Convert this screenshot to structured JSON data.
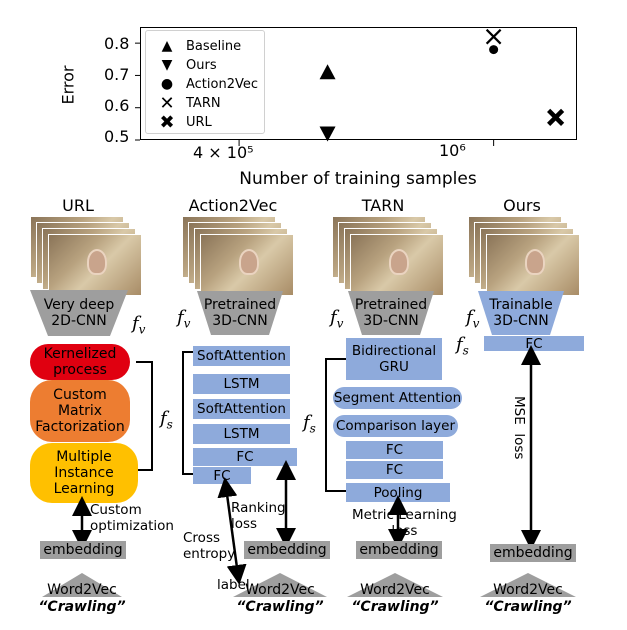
{
  "chart_data": {
    "type": "scatter",
    "xlabel": "Number of training samples",
    "ylabel": "Error",
    "xscale": "log",
    "xlim": [
      280000,
      1350000
    ],
    "ylim": [
      0.5,
      0.85
    ],
    "yticks": [
      "0.5",
      "0.6",
      "0.7",
      "0.8"
    ],
    "xticks": [
      {
        "value": 400000,
        "label": "4 × 10⁵"
      },
      {
        "value": 1000000,
        "label": "10⁶"
      }
    ],
    "legend": "upper-left",
    "series": [
      {
        "name": "Baseline",
        "marker": "triangle-up",
        "points": [
          {
            "x": 550000,
            "y": 0.71
          }
        ]
      },
      {
        "name": "Ours",
        "marker": "triangle-down",
        "points": [
          {
            "x": 550000,
            "y": 0.52
          }
        ]
      },
      {
        "name": "Action2Vec",
        "marker": "dot",
        "points": [
          {
            "x": 1000000,
            "y": 0.78
          }
        ]
      },
      {
        "name": "TARN",
        "marker": "x",
        "points": [
          {
            "x": 1000000,
            "y": 0.82
          }
        ]
      },
      {
        "name": "URL",
        "marker": "bold-x",
        "points": [
          {
            "x": 1250000,
            "y": 0.57
          }
        ]
      }
    ]
  },
  "diagram": {
    "columns": {
      "url": {
        "title": "URL",
        "encoder": "Very deep\n2D-CNN",
        "blocks": [
          "Kernelized\nprocess",
          "Custom\nMatrix\nFactorization",
          "Multiple\nInstance\nLearning"
        ],
        "arrow_note": "Custom\noptimization"
      },
      "action2vec": {
        "title": "Action2Vec",
        "encoder": "Pretrained\n3D-CNN",
        "blocks": [
          "SoftAttention",
          "LSTM",
          "SoftAttention",
          "LSTM",
          "FC",
          "FC"
        ],
        "note_cross": "Cross\nentropy",
        "note_label": "label",
        "note_ranking": "Ranking\nloss"
      },
      "tarn": {
        "title": "TARN",
        "encoder": "Pretrained\n3D-CNN",
        "blocks": [
          "Bidirectional\nGRU",
          "Segment Attention",
          "Comparison layer",
          "FC",
          "FC",
          "Pooling"
        ],
        "arrow_note": "Metric Learning\nloss"
      },
      "ours": {
        "title": "Ours",
        "encoder": "Trainable\n3D-CNN",
        "blocks": [
          "FC"
        ],
        "arrow_note": "MSE  loss"
      }
    },
    "math": {
      "fv_base": "f",
      "fv_sub": "v",
      "fs_base": "f",
      "fs_sub": "s"
    },
    "embedding_label": "embedding",
    "word2vec_label": "Word2Vec",
    "word_example": "“Crawling”",
    "colors": {
      "grey": "#9e9e9e",
      "blue": "#8eaadb",
      "red": "#e00010",
      "orange": "#ed7d31",
      "yellow": "#ffc000"
    }
  }
}
